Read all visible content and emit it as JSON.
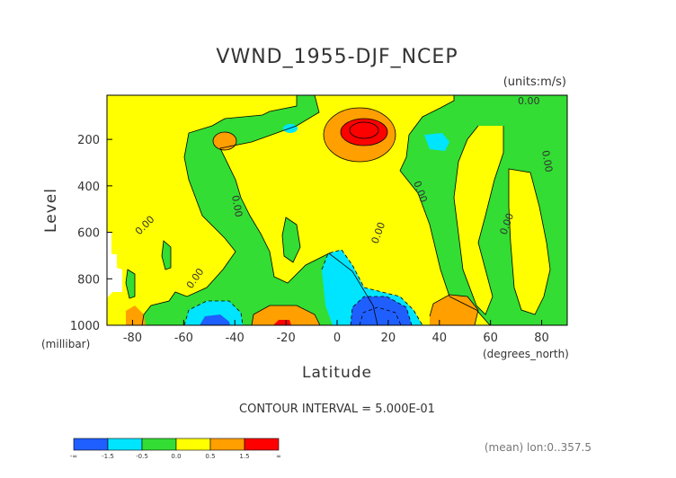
{
  "chart_data": {
    "type": "heatmap",
    "title": "VWND_1955-DJF_NCEP",
    "units_note": "(units:m/s)",
    "xlabel": "Latitude",
    "x_unit_note": "(degrees_north)",
    "ylabel": "Level",
    "y_unit_note": "(millibar)",
    "xlim": [
      -90,
      90
    ],
    "ylim": [
      1000,
      10
    ],
    "x_ticks": [
      -80,
      -60,
      -40,
      -20,
      0,
      20,
      40,
      60,
      80
    ],
    "x_tick_labels": [
      "-80",
      "-60",
      "-40",
      "-20",
      "0",
      "20",
      "40",
      "60",
      "80"
    ],
    "y_ticks": [
      200,
      400,
      600,
      800,
      1000
    ],
    "y_tick_labels": [
      "200",
      "400",
      "600",
      "800",
      "1000"
    ],
    "contour_interval_text": "CONTOUR INTERVAL = 5.000E-01",
    "footnote": "(mean) lon:0..357.5",
    "colorbar": {
      "colors": [
        "#1f5fff",
        "#00e5ff",
        "#33dd33",
        "#ffff00",
        "#ff9f00",
        "#ff0000"
      ],
      "labels": [
        "-∞",
        "-1.5",
        "-0.5",
        "0.0",
        "0.5",
        "1.5",
        "∞"
      ]
    },
    "contour_labels": [
      "0.00",
      "0.00",
      "0.00",
      "0.00",
      "0.00",
      "0.00",
      "0.00",
      "0.00",
      "0.00"
    ]
  }
}
